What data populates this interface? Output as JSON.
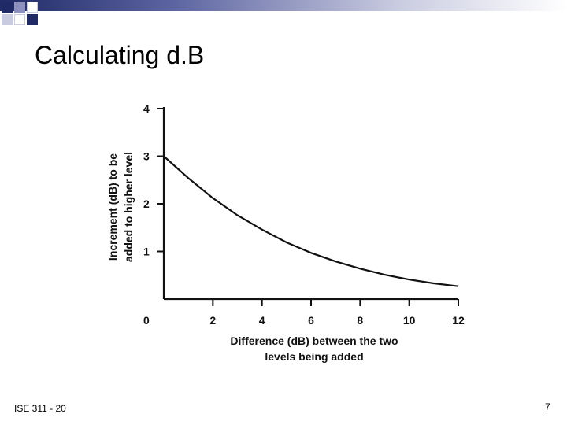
{
  "slide": {
    "title": "Calculating d.B",
    "footer_left": "ISE 311 - 20",
    "page_number": "7"
  },
  "theme": {
    "accent_dark": "#1f2a66",
    "accent_light": "#c9cbe0"
  },
  "chart_data": {
    "type": "line",
    "title": "",
    "xlabel": "Difference (dB) between the two levels being added",
    "xlabel_lines": [
      "Difference (dB) between the two",
      "levels being added"
    ],
    "ylabel": "Increment (dB) to be added to higher level",
    "ylabel_lines": [
      "Increment (dB) to be",
      "added to higher level"
    ],
    "xlim": [
      0,
      12
    ],
    "ylim": [
      0,
      4
    ],
    "x_ticks": [
      2,
      4,
      6,
      8,
      10,
      12
    ],
    "y_ticks": [
      1,
      2,
      3,
      4
    ],
    "origin_label": "0",
    "grid": false,
    "series": [
      {
        "x": [
          0,
          1,
          2,
          3,
          4,
          5,
          6,
          7,
          8,
          9,
          10,
          11,
          12
        ],
        "values": [
          3.0,
          2.54,
          2.12,
          1.76,
          1.46,
          1.19,
          0.97,
          0.79,
          0.64,
          0.51,
          0.41,
          0.33,
          0.27
        ]
      }
    ]
  }
}
